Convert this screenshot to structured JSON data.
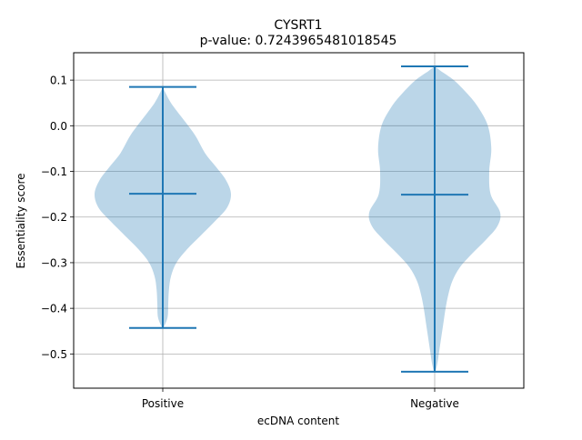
{
  "chart_data": {
    "type": "violin",
    "title": "CYSRT1",
    "subtitle": "p-value: 0.7243965481018545",
    "xlabel": "ecDNA content",
    "ylabel": "Essentiality score",
    "categories": [
      "Positive",
      "Negative"
    ],
    "ylim": [
      -0.575,
      0.16
    ],
    "yticks": [
      0.1,
      0.0,
      -0.1,
      -0.2,
      -0.3,
      -0.4,
      -0.5
    ],
    "ytick_labels": [
      "0.1",
      "0.0",
      "−0.1",
      "−0.2",
      "−0.3",
      "−0.4",
      "−0.5"
    ],
    "grid": true,
    "colors": {
      "fill": "#1f77b4",
      "fill_opacity": 0.3,
      "line": "#1f77b4"
    },
    "violins": [
      {
        "category": "Positive",
        "max": 0.085,
        "mean": -0.149,
        "min": -0.443,
        "density": [
          [
            0.085,
            0.0
          ],
          [
            0.075,
            0.03
          ],
          [
            0.05,
            0.12
          ],
          [
            0.02,
            0.27
          ],
          [
            -0.02,
            0.47
          ],
          [
            -0.06,
            0.62
          ],
          [
            -0.09,
            0.78
          ],
          [
            -0.12,
            0.93
          ],
          [
            -0.15,
            1.0
          ],
          [
            -0.18,
            0.94
          ],
          [
            -0.21,
            0.76
          ],
          [
            -0.24,
            0.56
          ],
          [
            -0.27,
            0.36
          ],
          [
            -0.3,
            0.2
          ],
          [
            -0.33,
            0.12
          ],
          [
            -0.36,
            0.09
          ],
          [
            -0.39,
            0.08
          ],
          [
            -0.42,
            0.07
          ],
          [
            -0.443,
            0.01
          ]
        ]
      },
      {
        "category": "Negative",
        "max": 0.13,
        "mean": -0.151,
        "min": -0.539,
        "density": [
          [
            0.13,
            0.0
          ],
          [
            0.12,
            0.09
          ],
          [
            0.1,
            0.28
          ],
          [
            0.07,
            0.48
          ],
          [
            0.04,
            0.64
          ],
          [
            0.0,
            0.78
          ],
          [
            -0.05,
            0.83
          ],
          [
            -0.1,
            0.8
          ],
          [
            -0.15,
            0.82
          ],
          [
            -0.19,
            0.96
          ],
          [
            -0.22,
            0.92
          ],
          [
            -0.25,
            0.75
          ],
          [
            -0.28,
            0.55
          ],
          [
            -0.31,
            0.37
          ],
          [
            -0.34,
            0.26
          ],
          [
            -0.37,
            0.2
          ],
          [
            -0.4,
            0.16
          ],
          [
            -0.43,
            0.13
          ],
          [
            -0.46,
            0.1
          ],
          [
            -0.49,
            0.07
          ],
          [
            -0.52,
            0.04
          ],
          [
            -0.539,
            0.01
          ]
        ]
      }
    ]
  }
}
